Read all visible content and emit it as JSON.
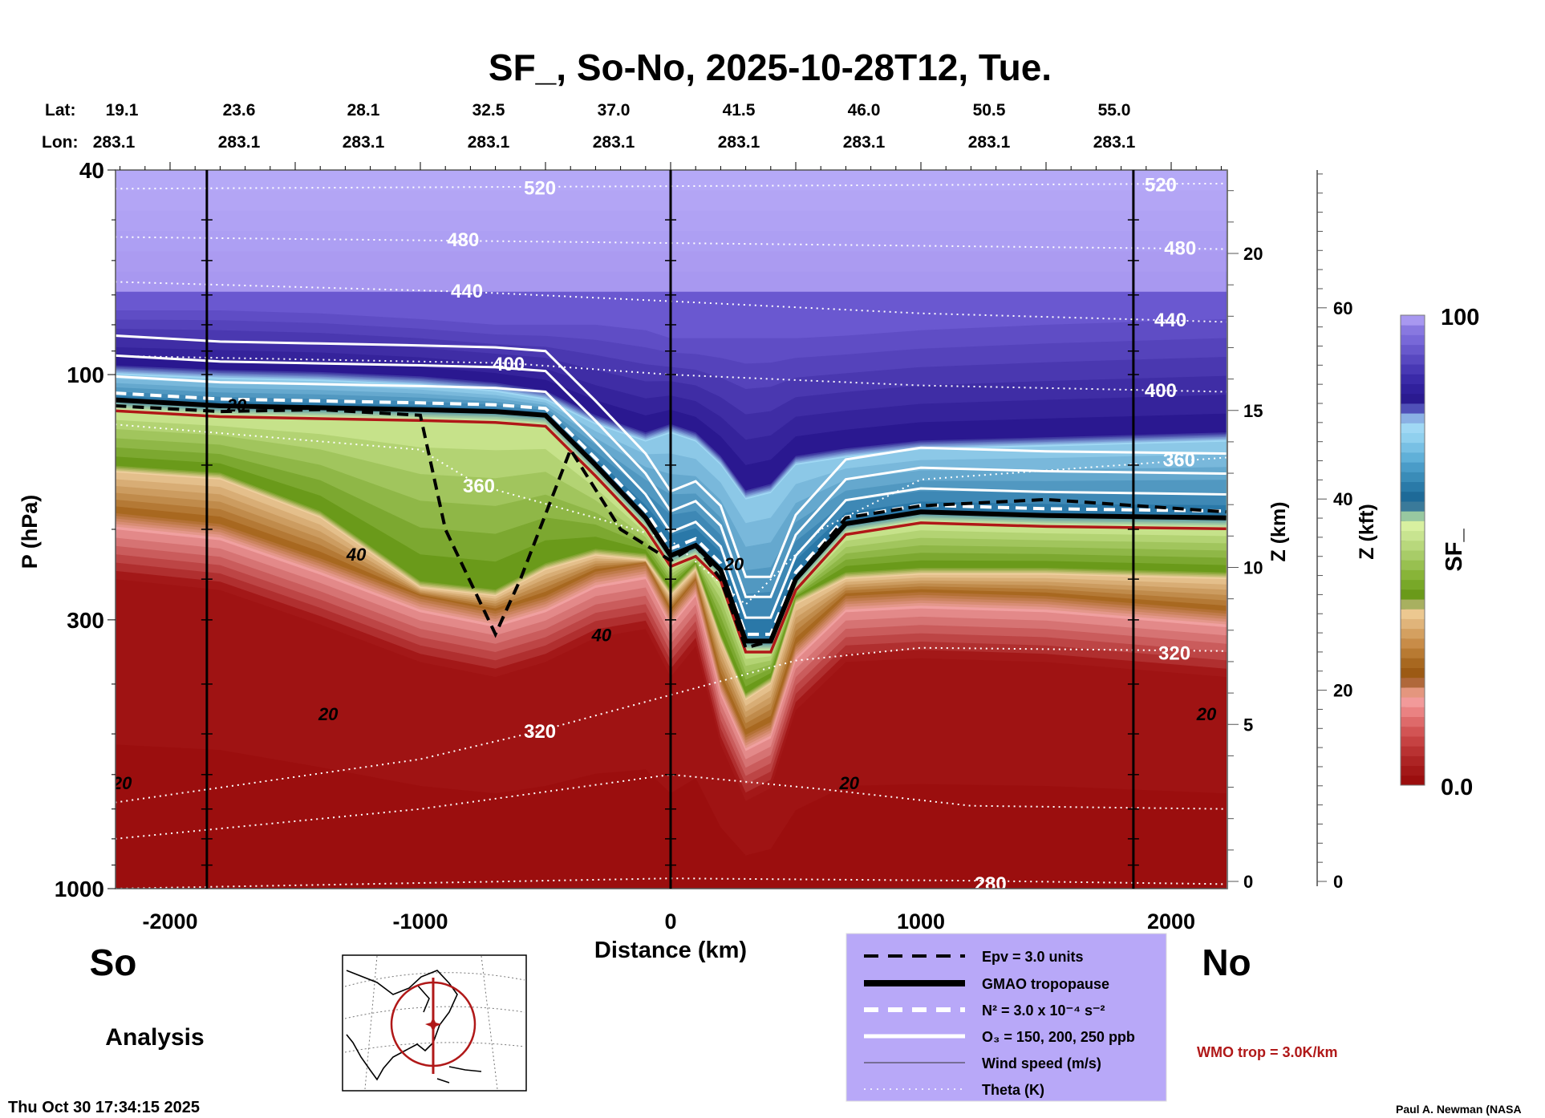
{
  "chart_data": {
    "type": "heatmap",
    "title": "SF_, So-No, 2025-10-28T12, Tue.",
    "xlabel": "Distance (km)",
    "ylabel": "P (hPa)",
    "y2label": "Z (km)",
    "y3label": "Z (kft)",
    "colorbar_label": "SF_",
    "xlim": [
      -2220,
      2220
    ],
    "ylim": [
      1000,
      40
    ],
    "x_ticks": [
      "-2000",
      "-1000",
      "0",
      "1000",
      "2000"
    ],
    "x_tick_values": [
      -2000,
      -1000,
      0,
      1000,
      2000
    ],
    "y_ticks": [
      "40",
      "100",
      "300",
      "1000"
    ],
    "y_tick_values": [
      40,
      100,
      300,
      1000
    ],
    "z_km_ticks": [
      "0",
      "5",
      "10",
      "15",
      "20"
    ],
    "z_km_values": [
      0,
      5,
      10,
      15,
      20
    ],
    "z_kft_ticks": [
      "0",
      "20",
      "40",
      "60"
    ],
    "z_kft_values": [
      0,
      20,
      40,
      60
    ],
    "lat_label": "Lat:",
    "lon_label": "Lon:",
    "lat_values": [
      "19.1",
      "23.6",
      "28.1",
      "32.5",
      "37.0",
      "41.5",
      "46.0",
      "50.5",
      "55.0"
    ],
    "lon_values": [
      "283.1",
      "283.1",
      "283.1",
      "283.1",
      "283.1",
      "283.1",
      "283.1",
      "283.1",
      "283.1"
    ],
    "colorbar": {
      "min_label": "0.0",
      "max_label": "100",
      "colors": [
        "#9b0e0e",
        "#a31818",
        "#ad2424",
        "#b93232",
        "#c64242",
        "#d25454",
        "#de6a6a",
        "#ea8282",
        "#f29a9a",
        "#e4967e",
        "#b0683a",
        "#9c5a14",
        "#a86820",
        "#b87a32",
        "#c88c48",
        "#d4a060",
        "#e0b47a",
        "#ecc890",
        "#a8b060",
        "#6a9a1a",
        "#78a828",
        "#88b438",
        "#98c050",
        "#a8cc68",
        "#b8d87c",
        "#c8e490",
        "#d8f0a0",
        "#98c8a0",
        "#3a7a9a",
        "#1e6a98",
        "#2a7aa8",
        "#3a8cb8",
        "#4a9cc8",
        "#60b0d8",
        "#78c0e4",
        "#90d0ee",
        "#a0d8f4",
        "#8ab0e4",
        "#5050b8",
        "#2a1a90",
        "#30209c",
        "#3a2aa8",
        "#4838b4",
        "#5848c0",
        "#6858cc",
        "#7868d8",
        "#8878e0",
        "#a898f0"
      ]
    },
    "field": {
      "x_km": [
        -2220,
        -1800,
        -1400,
        -1000,
        -700,
        -500,
        -300,
        -100,
        0,
        100,
        200,
        300,
        400,
        500,
        700,
        1000,
        1500,
        2220
      ],
      "tan_bottom_hPa": [
        200,
        210,
        245,
        290,
        310,
        290,
        260,
        250,
        310,
        270,
        420,
        540,
        510,
        360,
        290,
        285,
        290,
        310
      ],
      "green_bottom_hPa": [
        155,
        160,
        190,
        260,
        270,
        240,
        225,
        230,
        270,
        240,
        330,
        430,
        400,
        280,
        250,
        245,
        245,
        250
      ],
      "tropopause_hPa": [
        112,
        115,
        116,
        117,
        118,
        120,
        150,
        190,
        225,
        215,
        240,
        330,
        330,
        250,
        195,
        185,
        188,
        190
      ],
      "darkblue_bottom_hPa": [
        100,
        102,
        103,
        105,
        108,
        112,
        125,
        135,
        130,
        135,
        150,
        175,
        170,
        150,
        145,
        140,
        138,
        135
      ],
      "purple_bottom_hPa": [
        75,
        75,
        76,
        78,
        80,
        80,
        80,
        82,
        85,
        85,
        85,
        85,
        85,
        85,
        84,
        82,
        80,
        78
      ],
      "colors": {
        "red": "#9b0e0e",
        "pink": "#f0a0a0",
        "brown": "#a86820",
        "tan": "#f0d0a0",
        "green": "#6a9a1a",
        "lightgreen": "#d8f0a0",
        "teal": "#2a78a8",
        "lightblue": "#a0d8f4",
        "darkblue": "#2a1890",
        "purple": "#6a58d0",
        "lavender": "#a898f0",
        "top": "#b8acf8"
      }
    },
    "epv_3pvu_hPa": [
      [
        -2220,
        115
      ],
      [
        -1800,
        118
      ],
      [
        -1400,
        117
      ],
      [
        -1000,
        120
      ],
      [
        -900,
        200
      ],
      [
        -700,
        320
      ],
      [
        -600,
        250
      ],
      [
        -400,
        140
      ],
      [
        -200,
        200
      ],
      [
        0,
        230
      ],
      [
        100,
        215
      ],
      [
        200,
        250
      ],
      [
        300,
        340
      ],
      [
        400,
        330
      ],
      [
        500,
        250
      ],
      [
        700,
        190
      ],
      [
        1000,
        180
      ],
      [
        1500,
        175
      ],
      [
        2220,
        185
      ]
    ],
    "theta_contours": [
      {
        "label": "520",
        "points": [
          [
            -2220,
            43.5
          ],
          [
            2220,
            42.5
          ]
        ],
        "label_at": [
          [
            -522,
            43.2
          ],
          [
            1958,
            42.6
          ]
        ]
      },
      {
        "label": "480",
        "points": [
          [
            -2220,
            54
          ],
          [
            2220,
            57
          ]
        ],
        "label_at": [
          [
            -829,
            54.5
          ],
          [
            2036,
            56.6
          ]
        ]
      },
      {
        "label": "440",
        "points": [
          [
            -2220,
            66
          ],
          [
            -814,
            69
          ],
          [
            0,
            72
          ],
          [
            1000,
            76
          ],
          [
            2220,
            79
          ]
        ],
        "label_at": [
          [
            -814,
            68.6
          ],
          [
            1997,
            78
          ]
        ]
      },
      {
        "label": "400",
        "points": [
          [
            -2220,
            92
          ],
          [
            -647,
            95
          ],
          [
            0,
            100
          ],
          [
            1000,
            105
          ],
          [
            2220,
            108
          ]
        ],
        "label_at": [
          [
            -647,
            95
          ],
          [
            1958,
            107
          ]
        ]
      },
      {
        "label": "360",
        "points": [
          [
            -2220,
            125
          ],
          [
            -1000,
            140
          ],
          [
            -766,
            164
          ],
          [
            -300,
            190
          ],
          [
            0,
            210
          ],
          [
            300,
            280
          ],
          [
            600,
            200
          ],
          [
            1000,
            160
          ],
          [
            2220,
            145
          ]
        ],
        "label_at": [
          [
            -766,
            164
          ],
          [
            2032,
            146
          ]
        ]
      },
      {
        "label": "320",
        "points": [
          [
            -2220,
            680
          ],
          [
            -1000,
            560
          ],
          [
            -520,
            493
          ],
          [
            0,
            420
          ],
          [
            500,
            360
          ],
          [
            1000,
            340
          ],
          [
            2220,
            345
          ]
        ],
        "label_at": [
          [
            -522,
            493
          ],
          [
            2013,
            347
          ]
        ]
      },
      {
        "label": "",
        "points": [
          [
            -2220,
            800
          ],
          [
            -1000,
            700
          ],
          [
            0,
            600
          ],
          [
            600,
            640
          ],
          [
            1200,
            690
          ],
          [
            2220,
            700
          ]
        ],
        "label_at": []
      },
      {
        "label": "280",
        "points": [
          [
            -2220,
            1000
          ],
          [
            -1000,
            975
          ],
          [
            0,
            955
          ],
          [
            1200,
            965
          ],
          [
            2220,
            980
          ]
        ],
        "label_at": [
          [
            1278,
            975
          ]
        ]
      }
    ],
    "wind_labels": [
      {
        "text": "40",
        "at": [
          -1256,
          230
        ]
      },
      {
        "text": "40",
        "at": [
          -276,
          330
        ]
      },
      {
        "text": "20",
        "at": [
          -1368,
          470
        ]
      },
      {
        "text": "20",
        "at": [
          -2192,
          640
        ]
      },
      {
        "text": "20",
        "at": [
          714,
          640
        ]
      },
      {
        "text": "20",
        "at": [
          2141,
          470
        ]
      },
      {
        "text": "20",
        "at": [
          253,
          240
        ]
      },
      {
        "text": "20",
        "at": [
          -1734,
          118
        ]
      }
    ],
    "legend": [
      {
        "label": "Epv = 3.0 units",
        "style": "black-dashed"
      },
      {
        "label": "GMAO tropopause",
        "style": "black-thick"
      },
      {
        "label": "N² = 3.0 x 10⁻⁴ s⁻²",
        "style": "white-dashed"
      },
      {
        "label": "O₃ = 150, 200, 250 ppb",
        "style": "white-solid"
      },
      {
        "label": "Wind speed (m/s)",
        "style": "thin-black"
      },
      {
        "label": "Theta (K)",
        "style": "white-dotted"
      }
    ],
    "wmo_label": "WMO trop = 3.0K/km",
    "wmo_color": "#b01818",
    "legend_bg": "#b8a8f8"
  },
  "labels": {
    "south": "So",
    "north": "No",
    "analysis": "Analysis",
    "timestamp": "Thu Oct 30 17:34:15 2025",
    "credit": "Paul A. Newman (NASA"
  }
}
